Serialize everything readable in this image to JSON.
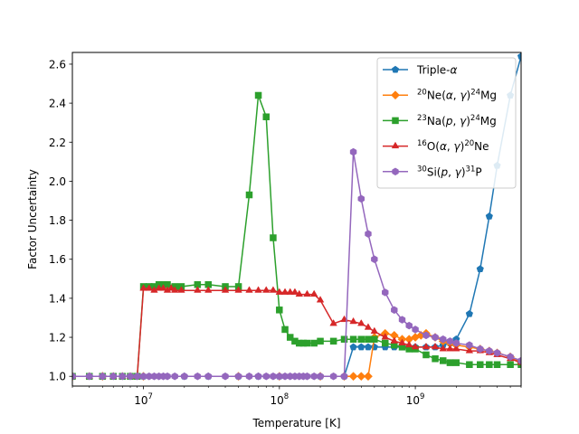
{
  "chart_data": {
    "type": "line",
    "title": "",
    "xlabel": "Temperature [K]",
    "ylabel": "Factor Uncertainty",
    "xscale": "log",
    "xlim": [
      3000000,
      6000000000
    ],
    "ylim": [
      0.95,
      2.66
    ],
    "xticks": [
      {
        "value": 10000000,
        "base": "10",
        "exp": "7"
      },
      {
        "value": 100000000,
        "base": "10",
        "exp": "8"
      },
      {
        "value": 1000000000,
        "base": "10",
        "exp": "9"
      }
    ],
    "yticks": [
      {
        "value": 1.0,
        "label": "1.0"
      },
      {
        "value": 1.2,
        "label": "1.2"
      },
      {
        "value": 1.4,
        "label": "1.4"
      },
      {
        "value": 1.6,
        "label": "1.6"
      },
      {
        "value": 1.8,
        "label": "1.8"
      },
      {
        "value": 2.0,
        "label": "2.0"
      },
      {
        "value": 2.2,
        "label": "2.2"
      },
      {
        "value": 2.4,
        "label": "2.4"
      },
      {
        "value": 2.6,
        "label": "2.6"
      }
    ],
    "legend_position": "upper-right",
    "series": [
      {
        "name": "Triple-α",
        "legend_parts": [
          {
            "t": "Triple-"
          },
          {
            "t": "α",
            "italic": true
          }
        ],
        "color": "#1f77b4",
        "marker": "pentagon",
        "points": [
          [
            3000000,
            1.0
          ],
          [
            4000000,
            1.0
          ],
          [
            5000000,
            1.0
          ],
          [
            6000000,
            1.0
          ],
          [
            7000000,
            1.0
          ],
          [
            8000000,
            1.0
          ],
          [
            9000000,
            1.0
          ],
          [
            10000000,
            1.0
          ],
          [
            20000000,
            1.0
          ],
          [
            30000000,
            1.0
          ],
          [
            50000000,
            1.0
          ],
          [
            70000000,
            1.0
          ],
          [
            100000000,
            1.0
          ],
          [
            200000000,
            1.0
          ],
          [
            300000000,
            1.0
          ],
          [
            350000000,
            1.15
          ],
          [
            400000000,
            1.15
          ],
          [
            450000000,
            1.15
          ],
          [
            500000000,
            1.15
          ],
          [
            600000000,
            1.15
          ],
          [
            700000000,
            1.15
          ],
          [
            800000000,
            1.15
          ],
          [
            900000000,
            1.15
          ],
          [
            1000000000,
            1.15
          ],
          [
            1200000000,
            1.15
          ],
          [
            1400000000,
            1.15
          ],
          [
            1600000000,
            1.16
          ],
          [
            1800000000,
            1.17
          ],
          [
            2000000000,
            1.19
          ],
          [
            2500000000,
            1.32
          ],
          [
            3000000000,
            1.55
          ],
          [
            3500000000,
            1.82
          ],
          [
            4000000000,
            2.08
          ],
          [
            5000000000,
            2.44
          ],
          [
            6000000000,
            2.64
          ]
        ]
      },
      {
        "name": "20Ne(α, γ)24Mg",
        "legend_parts": [
          {
            "t": "20",
            "sup": true
          },
          {
            "t": "Ne("
          },
          {
            "t": "α",
            "italic": true
          },
          {
            "t": ", "
          },
          {
            "t": "γ",
            "italic": true
          },
          {
            "t": ")"
          },
          {
            "t": "24",
            "sup": true
          },
          {
            "t": "Mg"
          }
        ],
        "color": "#ff7f0e",
        "marker": "diamond",
        "points": [
          [
            3000000,
            1.0
          ],
          [
            5000000,
            1.0
          ],
          [
            10000000,
            1.0
          ],
          [
            50000000,
            1.0
          ],
          [
            100000000,
            1.0
          ],
          [
            200000000,
            1.0
          ],
          [
            300000000,
            1.0
          ],
          [
            350000000,
            1.0
          ],
          [
            400000000,
            1.0
          ],
          [
            450000000,
            1.0
          ],
          [
            500000000,
            1.2
          ],
          [
            600000000,
            1.22
          ],
          [
            700000000,
            1.21
          ],
          [
            800000000,
            1.19
          ],
          [
            900000000,
            1.19
          ],
          [
            1000000000,
            1.2
          ],
          [
            1100000000,
            1.21
          ],
          [
            1200000000,
            1.22
          ],
          [
            1400000000,
            1.2
          ],
          [
            1600000000,
            1.18
          ],
          [
            1800000000,
            1.17
          ],
          [
            2000000000,
            1.16
          ],
          [
            2500000000,
            1.15
          ],
          [
            3000000000,
            1.14
          ],
          [
            3500000000,
            1.13
          ],
          [
            4000000000,
            1.12
          ],
          [
            5000000000,
            1.1
          ],
          [
            6000000000,
            1.07
          ]
        ]
      },
      {
        "name": "23Na(p, γ)24Mg",
        "legend_parts": [
          {
            "t": "23",
            "sup": true
          },
          {
            "t": "Na("
          },
          {
            "t": "p",
            "italic": true
          },
          {
            "t": ", "
          },
          {
            "t": "γ",
            "italic": true
          },
          {
            "t": ")"
          },
          {
            "t": "24",
            "sup": true
          },
          {
            "t": "Mg"
          }
        ],
        "color": "#2ca02c",
        "marker": "square",
        "points": [
          [
            3000000,
            1.0
          ],
          [
            4000000,
            1.0
          ],
          [
            5000000,
            1.0
          ],
          [
            6000000,
            1.0
          ],
          [
            7000000,
            1.0
          ],
          [
            8000000,
            1.0
          ],
          [
            9000000,
            1.0
          ],
          [
            10000000,
            1.46
          ],
          [
            11000000,
            1.46
          ],
          [
            12000000,
            1.46
          ],
          [
            13000000,
            1.47
          ],
          [
            14000000,
            1.47
          ],
          [
            15000000,
            1.47
          ],
          [
            17000000,
            1.46
          ],
          [
            19000000,
            1.46
          ],
          [
            25000000,
            1.47
          ],
          [
            30000000,
            1.47
          ],
          [
            40000000,
            1.46
          ],
          [
            50000000,
            1.46
          ],
          [
            60000000,
            1.93
          ],
          [
            70000000,
            2.44
          ],
          [
            80000000,
            2.33
          ],
          [
            90000000,
            1.71
          ],
          [
            100000000,
            1.34
          ],
          [
            110000000,
            1.24
          ],
          [
            120000000,
            1.2
          ],
          [
            130000000,
            1.18
          ],
          [
            140000000,
            1.17
          ],
          [
            150000000,
            1.17
          ],
          [
            160000000,
            1.17
          ],
          [
            180000000,
            1.17
          ],
          [
            200000000,
            1.18
          ],
          [
            250000000,
            1.18
          ],
          [
            300000000,
            1.19
          ],
          [
            350000000,
            1.19
          ],
          [
            400000000,
            1.19
          ],
          [
            450000000,
            1.19
          ],
          [
            500000000,
            1.19
          ],
          [
            600000000,
            1.17
          ],
          [
            700000000,
            1.16
          ],
          [
            800000000,
            1.15
          ],
          [
            900000000,
            1.14
          ],
          [
            1000000000,
            1.14
          ],
          [
            1200000000,
            1.11
          ],
          [
            1400000000,
            1.09
          ],
          [
            1600000000,
            1.08
          ],
          [
            1800000000,
            1.07
          ],
          [
            2000000000,
            1.07
          ],
          [
            2500000000,
            1.06
          ],
          [
            3000000000,
            1.06
          ],
          [
            3500000000,
            1.06
          ],
          [
            4000000000,
            1.06
          ],
          [
            5000000000,
            1.06
          ],
          [
            6000000000,
            1.06
          ]
        ]
      },
      {
        "name": "16O(α, γ)20Ne",
        "legend_parts": [
          {
            "t": "16",
            "sup": true
          },
          {
            "t": "O("
          },
          {
            "t": "α",
            "italic": true
          },
          {
            "t": ", "
          },
          {
            "t": "γ",
            "italic": true
          },
          {
            "t": ")"
          },
          {
            "t": "20",
            "sup": true
          },
          {
            "t": "Ne"
          }
        ],
        "color": "#d62728",
        "marker": "triangle",
        "points": [
          [
            3000000,
            1.0
          ],
          [
            4000000,
            1.0
          ],
          [
            5000000,
            1.0
          ],
          [
            6000000,
            1.0
          ],
          [
            7000000,
            1.0
          ],
          [
            8000000,
            1.0
          ],
          [
            9000000,
            1.0
          ],
          [
            10000000,
            1.45
          ],
          [
            11000000,
            1.45
          ],
          [
            12000000,
            1.44
          ],
          [
            13000000,
            1.45
          ],
          [
            14000000,
            1.45
          ],
          [
            15000000,
            1.44
          ],
          [
            16000000,
            1.45
          ],
          [
            17000000,
            1.44
          ],
          [
            19000000,
            1.44
          ],
          [
            25000000,
            1.44
          ],
          [
            30000000,
            1.44
          ],
          [
            40000000,
            1.44
          ],
          [
            50000000,
            1.44
          ],
          [
            60000000,
            1.44
          ],
          [
            70000000,
            1.44
          ],
          [
            80000000,
            1.44
          ],
          [
            90000000,
            1.44
          ],
          [
            100000000,
            1.43
          ],
          [
            110000000,
            1.43
          ],
          [
            120000000,
            1.43
          ],
          [
            130000000,
            1.43
          ],
          [
            140000000,
            1.42
          ],
          [
            160000000,
            1.42
          ],
          [
            180000000,
            1.42
          ],
          [
            200000000,
            1.39
          ],
          [
            250000000,
            1.27
          ],
          [
            300000000,
            1.29
          ],
          [
            350000000,
            1.28
          ],
          [
            400000000,
            1.27
          ],
          [
            450000000,
            1.25
          ],
          [
            500000000,
            1.23
          ],
          [
            600000000,
            1.2
          ],
          [
            700000000,
            1.18
          ],
          [
            800000000,
            1.17
          ],
          [
            900000000,
            1.16
          ],
          [
            1000000000,
            1.15
          ],
          [
            1200000000,
            1.15
          ],
          [
            1400000000,
            1.15
          ],
          [
            1600000000,
            1.14
          ],
          [
            1800000000,
            1.14
          ],
          [
            2000000000,
            1.14
          ],
          [
            2500000000,
            1.13
          ],
          [
            3000000000,
            1.13
          ],
          [
            3500000000,
            1.12
          ],
          [
            4000000000,
            1.11
          ],
          [
            5000000000,
            1.09
          ],
          [
            6000000000,
            1.07
          ]
        ]
      },
      {
        "name": "30Si(p, γ)31P",
        "legend_parts": [
          {
            "t": "30",
            "sup": true
          },
          {
            "t": "Si("
          },
          {
            "t": "p",
            "italic": true
          },
          {
            "t": ", "
          },
          {
            "t": "γ",
            "italic": true
          },
          {
            "t": ")"
          },
          {
            "t": "31",
            "sup": true
          },
          {
            "t": "P"
          }
        ],
        "color": "#9467bd",
        "marker": "hexagon",
        "points": [
          [
            3000000,
            1.0
          ],
          [
            4000000,
            1.0
          ],
          [
            5000000,
            1.0
          ],
          [
            6000000,
            1.0
          ],
          [
            7000000,
            1.0
          ],
          [
            8000000,
            1.0
          ],
          [
            9000000,
            1.0
          ],
          [
            10000000,
            1.0
          ],
          [
            11000000,
            1.0
          ],
          [
            12000000,
            1.0
          ],
          [
            13000000,
            1.0
          ],
          [
            14000000,
            1.0
          ],
          [
            15000000,
            1.0
          ],
          [
            17000000,
            1.0
          ],
          [
            20000000,
            1.0
          ],
          [
            25000000,
            1.0
          ],
          [
            30000000,
            1.0
          ],
          [
            40000000,
            1.0
          ],
          [
            50000000,
            1.0
          ],
          [
            60000000,
            1.0
          ],
          [
            70000000,
            1.0
          ],
          [
            80000000,
            1.0
          ],
          [
            90000000,
            1.0
          ],
          [
            100000000,
            1.0
          ],
          [
            110000000,
            1.0
          ],
          [
            120000000,
            1.0
          ],
          [
            130000000,
            1.0
          ],
          [
            140000000,
            1.0
          ],
          [
            150000000,
            1.0
          ],
          [
            160000000,
            1.0
          ],
          [
            180000000,
            1.0
          ],
          [
            200000000,
            1.0
          ],
          [
            250000000,
            1.0
          ],
          [
            300000000,
            1.0
          ],
          [
            350000000,
            2.15
          ],
          [
            400000000,
            1.91
          ],
          [
            450000000,
            1.73
          ],
          [
            500000000,
            1.6
          ],
          [
            600000000,
            1.43
          ],
          [
            700000000,
            1.34
          ],
          [
            800000000,
            1.29
          ],
          [
            900000000,
            1.26
          ],
          [
            1000000000,
            1.24
          ],
          [
            1200000000,
            1.21
          ],
          [
            1400000000,
            1.2
          ],
          [
            1600000000,
            1.19
          ],
          [
            1800000000,
            1.18
          ],
          [
            2000000000,
            1.17
          ],
          [
            2500000000,
            1.16
          ],
          [
            3000000000,
            1.14
          ],
          [
            3500000000,
            1.13
          ],
          [
            4000000000,
            1.12
          ],
          [
            5000000000,
            1.1
          ],
          [
            6000000000,
            1.08
          ]
        ]
      }
    ]
  }
}
